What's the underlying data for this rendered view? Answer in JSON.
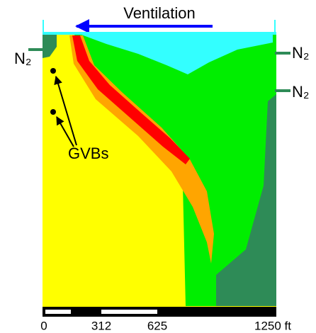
{
  "title": "Ventilation",
  "labels": {
    "left_gas": "N₂",
    "right_gas_top": "N₂",
    "right_gas_bottom": "N₂",
    "gvbs": "GVBs"
  },
  "scale_bar": {
    "labels": [
      "0",
      "312",
      "625",
      "1250 ft"
    ]
  }
}
